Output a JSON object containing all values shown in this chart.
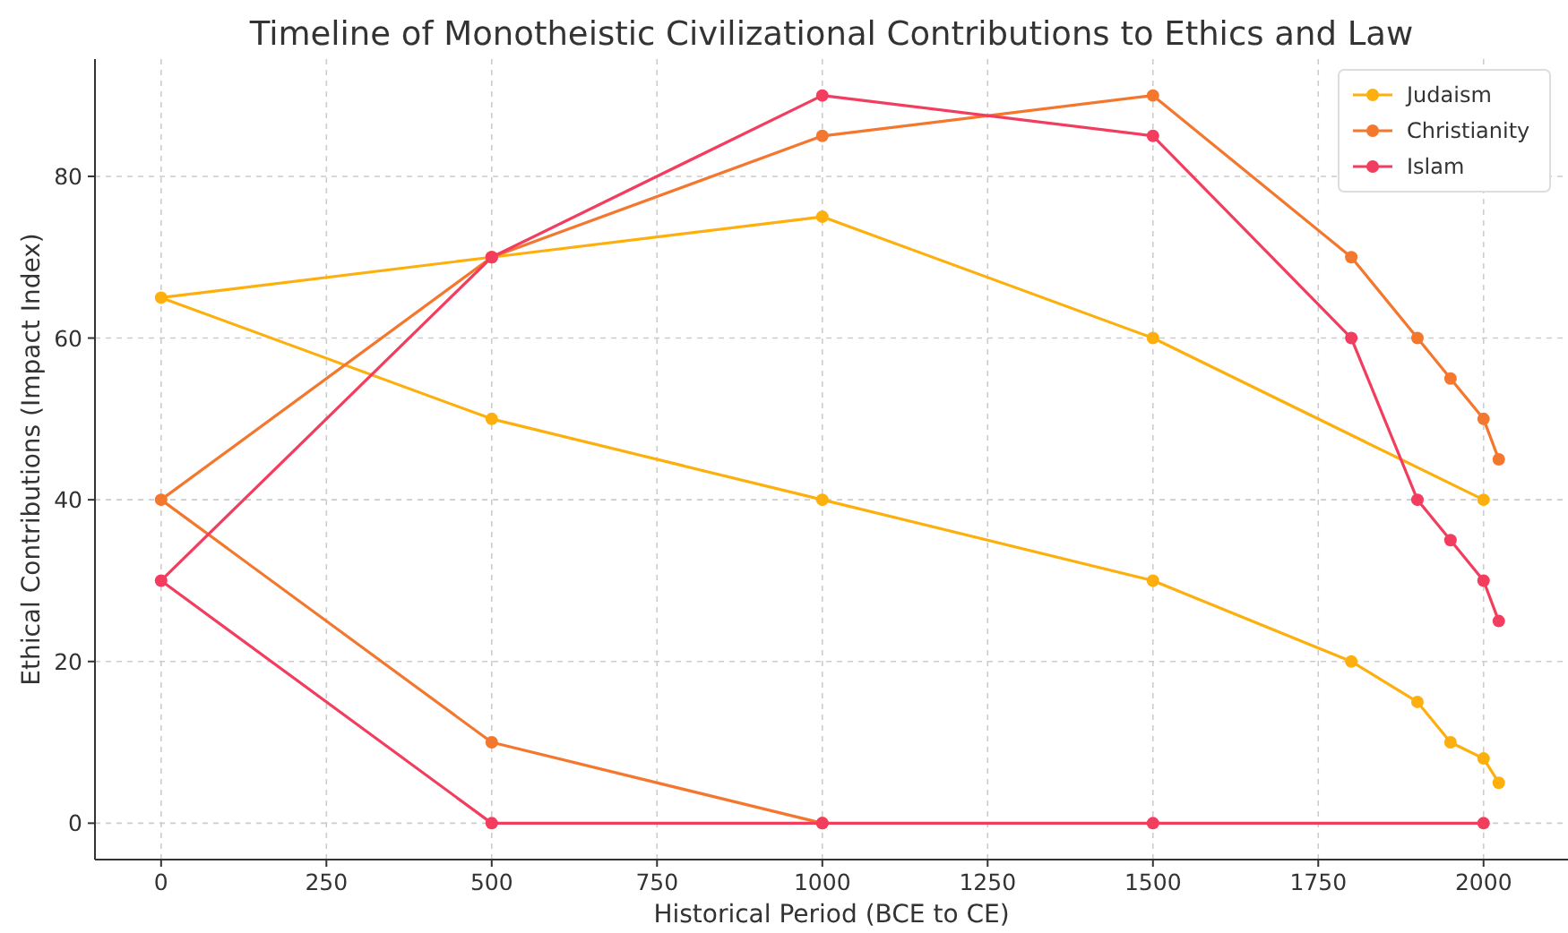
{
  "chart_data": {
    "type": "line",
    "title": "Timeline of Monotheistic Civilizational Contributions to Ethics and Law",
    "xlabel": "Historical Period (BCE to CE)",
    "ylabel": "Ethical Contributions (Impact Index)",
    "xlim": [
      -100,
      2125
    ],
    "xticks": [
      0,
      250,
      500,
      750,
      1000,
      1250,
      1500,
      1750,
      2000
    ],
    "ylim": [
      -4.5,
      94.5
    ],
    "yticks": [
      0,
      20,
      40,
      60,
      80
    ],
    "grid": true,
    "legend": "top right",
    "marker": "circle",
    "line_style": "solid",
    "series": [
      {
        "name": "Judaism",
        "color": "#fdb00d",
        "x": [
          2000,
          1500,
          1000,
          500,
          0,
          500,
          1000,
          1500,
          1800,
          1900,
          1950,
          2000,
          2023
        ],
        "values": [
          40,
          60,
          75,
          70,
          65,
          50,
          40,
          30,
          20,
          15,
          10,
          8,
          5
        ]
      },
      {
        "name": "Christianity",
        "color": "#f4772e",
        "x": [
          1000,
          500,
          0,
          500,
          1000,
          1500,
          1800,
          1900,
          1950,
          2000,
          2023
        ],
        "values": [
          0,
          10,
          40,
          70,
          85,
          90,
          70,
          60,
          55,
          50,
          45
        ]
      },
      {
        "name": "Islam",
        "color": "#f23d5e",
        "x": [
          2000,
          1500,
          1000,
          500,
          0,
          500,
          1000,
          1500,
          1800,
          1900,
          1950,
          2000,
          2023
        ],
        "values": [
          0,
          0,
          0,
          0,
          30,
          70,
          90,
          85,
          60,
          40,
          35,
          30,
          25
        ]
      }
    ]
  }
}
